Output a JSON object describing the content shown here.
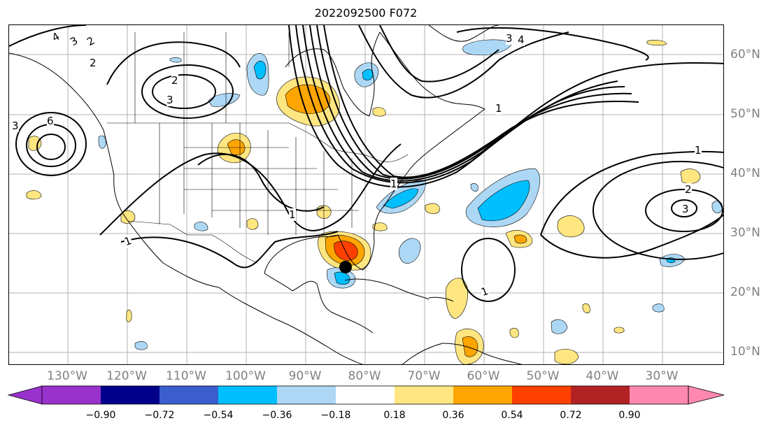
{
  "title": "2022092500 F072",
  "map": {
    "lon_labels": [
      "130°W",
      "120°W",
      "110°W",
      "100°W",
      "90°W",
      "80°W",
      "70°W",
      "60°W",
      "50°W",
      "40°W",
      "30°W"
    ],
    "lat_labels": [
      "60°N",
      "50°N",
      "40°N",
      "30°N",
      "20°N",
      "10°N"
    ],
    "contour_labels": [
      "4",
      "3",
      "2",
      "6",
      "3",
      "2",
      "3",
      "4",
      "3",
      "2",
      "1",
      "1",
      "1",
      "1",
      "1",
      "1",
      "2",
      "3"
    ],
    "storm_marker": {
      "lon": -84.5,
      "lat": 24.5
    }
  },
  "colorbar": {
    "tick_labels": [
      "−0.90",
      "−0.72",
      "−0.54",
      "−0.36",
      "−0.18",
      "0.18",
      "0.36",
      "0.54",
      "0.72",
      "0.90"
    ],
    "colors": [
      "#9932cc",
      "#00008b",
      "#3a5fcd",
      "#00bfff",
      "#add8f5",
      "#ffffff",
      "#ffe680",
      "#ffa500",
      "#ff4000",
      "#b22222",
      "#ff88b0"
    ]
  }
}
